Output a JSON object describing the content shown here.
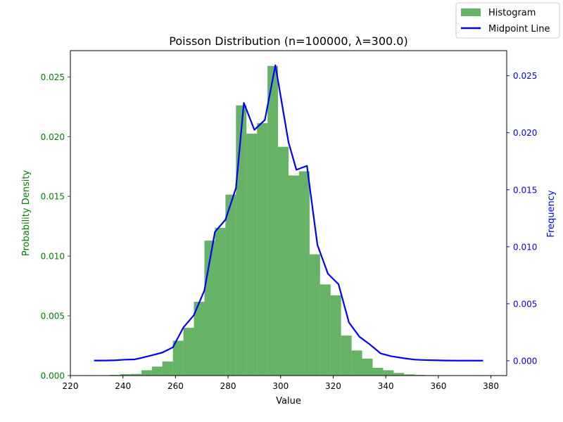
{
  "chart_data": {
    "type": "bar",
    "title": "Poisson Distribution (n=100000, λ=300.0)",
    "xlabel": "Value",
    "ylabel_left": "Probability Density",
    "ylabel_right": "Frequency",
    "xlim": [
      220,
      386
    ],
    "ylim_left": [
      0,
      0.0272
    ],
    "ylim_right": [
      -0.0013,
      0.0272
    ],
    "xticks": [
      "220",
      "240",
      "260",
      "280",
      "300",
      "320",
      "340",
      "360",
      "380"
    ],
    "yticks_left": [
      "0.000",
      "0.005",
      "0.010",
      "0.015",
      "0.020",
      "0.025"
    ],
    "yticks_right": [
      "0.000",
      "0.005",
      "0.010",
      "0.015",
      "0.020",
      "0.025"
    ],
    "grid": false,
    "legend_position": "top-right",
    "colors": {
      "histogram": "#008000",
      "line": "#0000ff",
      "left_axis": "#008000",
      "right_axis": "#0000ff"
    },
    "histogram": {
      "name": "Histogram",
      "bin_edges": [
        227,
        231,
        235,
        239,
        243,
        247,
        251,
        255,
        259,
        263,
        267,
        271,
        275,
        279,
        283,
        287,
        291,
        295,
        299,
        303,
        307,
        311,
        315,
        319,
        323,
        327,
        331,
        335,
        339,
        343,
        347,
        351,
        355,
        359,
        363,
        367,
        371,
        375,
        379
      ],
      "values": [
        2e-05,
        3e-05,
        6e-05,
        0.00012,
        0.00014,
        0.00045,
        0.00075,
        0.00118,
        0.00292,
        0.004,
        0.00618,
        0.0113,
        0.01237,
        0.01515,
        0.02262,
        0.02025,
        0.02113,
        0.02592,
        0.01915,
        0.01675,
        0.0171,
        0.01015,
        0.00763,
        0.00672,
        0.00335,
        0.0021,
        0.00142,
        0.00065,
        0.00045,
        0.00022,
        0.0001,
        6e-05,
        4e-05,
        2e-05,
        1e-05,
        1e-05,
        1e-05,
        1e-05
      ]
    },
    "line": {
      "name": "Midpoint Line",
      "x": [
        229,
        233,
        237,
        241,
        244.5,
        247,
        251,
        255,
        259,
        263,
        267,
        271,
        275,
        279,
        283,
        286,
        290,
        294,
        298,
        303,
        306,
        310,
        314,
        318,
        322,
        326,
        330,
        334,
        338,
        342,
        347,
        351,
        355,
        359,
        363,
        367,
        371,
        377
      ],
      "y": [
        2e-05,
        2e-05,
        4e-05,
        0.0001,
        0.00012,
        0.00025,
        0.00048,
        0.00072,
        0.00118,
        0.00292,
        0.004,
        0.00618,
        0.0113,
        0.01237,
        0.01515,
        0.02262,
        0.02025,
        0.02113,
        0.02592,
        0.01915,
        0.01675,
        0.0171,
        0.01015,
        0.00763,
        0.00672,
        0.00335,
        0.0021,
        0.00142,
        0.00065,
        0.0004,
        0.00022,
        0.0001,
        6e-05,
        4e-05,
        2e-05,
        1e-05,
        1e-05,
        1e-05
      ]
    }
  }
}
